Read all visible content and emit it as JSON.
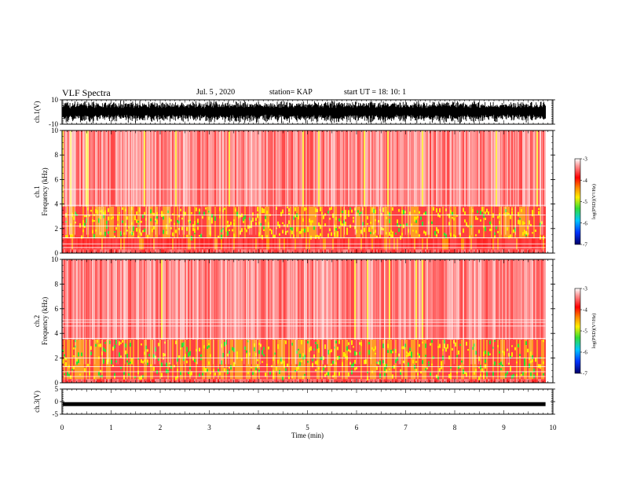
{
  "header": {
    "title": "VLF Spectra",
    "date": "Jul. 5 , 2020",
    "station": "station= KAP",
    "start_ut": "start UT = 18: 10: 1"
  },
  "chart_data": [
    {
      "type": "line",
      "name_panel": "ch1-waveform",
      "ylabel": "ch.1(V)",
      "ylim": [
        -10,
        10
      ],
      "yticks": [
        "10",
        "-10"
      ],
      "xlim": [
        0,
        10
      ],
      "data_extent_min": 9.85
    },
    {
      "type": "heatmap",
      "name_panel": "ch1-spectrogram",
      "ylabel_line1": "ch.1",
      "ylabel_line2": "Frequency (kHz)",
      "ylim": [
        0,
        10
      ],
      "yticks": [
        "0",
        "2",
        "4",
        "6",
        "8",
        "10"
      ],
      "xlim": [
        0,
        10
      ],
      "data_extent_min": 9.85,
      "colorbar": {
        "label": "log(PSD)(V²/Hz)",
        "ticks": [
          "-3",
          "-4",
          "-5",
          "-6",
          "-7"
        ],
        "range": [
          -7,
          -3
        ]
      },
      "bands_kHz": [
        [
          0,
          0.3,
          "low"
        ],
        [
          0.3,
          1.2,
          "red"
        ],
        [
          1.2,
          3.8,
          "mixed"
        ],
        [
          3.8,
          10,
          "sparse"
        ]
      ]
    },
    {
      "type": "heatmap",
      "name_panel": "ch2-spectrogram",
      "ylabel_line1": "ch.2",
      "ylabel_line2": "Frequency (kHz)",
      "ylim": [
        0,
        10
      ],
      "yticks": [
        "0",
        "2",
        "4",
        "6",
        "8",
        "10"
      ],
      "xlim": [
        0,
        10
      ],
      "data_extent_min": 9.85,
      "colorbar": {
        "label": "log(PSD)(V²/Hz)",
        "ticks": [
          "-3",
          "-4",
          "-5",
          "-6",
          "-7"
        ],
        "range": [
          -7,
          -3
        ]
      },
      "bands_kHz": [
        [
          0,
          0.3,
          "low"
        ],
        [
          0.3,
          3.5,
          "mixed"
        ],
        [
          3.5,
          10,
          "sparse"
        ]
      ]
    },
    {
      "type": "line",
      "name_panel": "ch3-waveform",
      "ylabel": "ch.3(V)",
      "ylim": [
        -5,
        5
      ],
      "yticks": [
        "5",
        "0",
        "-5"
      ],
      "xlim": [
        0,
        10
      ],
      "xticks": [
        "0",
        "1",
        "2",
        "3",
        "4",
        "5",
        "6",
        "7",
        "8",
        "9",
        "10"
      ],
      "xlabel": "Time (min)",
      "data_extent_min": 9.85,
      "trace_level_V": -1
    }
  ],
  "colors": {
    "red": "#ff2020",
    "orange": "#ff8a00",
    "yellow": "#ffe600",
    "green": "#33dd33",
    "ink": "#000000"
  }
}
